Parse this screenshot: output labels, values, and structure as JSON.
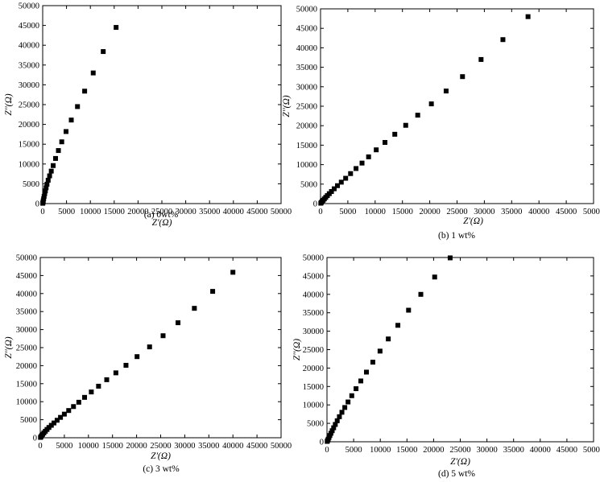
{
  "panels": [
    {
      "caption": "(a) 0wt%",
      "chart_data": {
        "type": "scatter",
        "xlabel": "Z'(Ω)",
        "ylabel": "Z''(Ω)",
        "xlim": [
          0,
          50000
        ],
        "ylim": [
          0,
          50000
        ],
        "x_ticks": [
          0,
          5000,
          10000,
          15000,
          20000,
          25000,
          30000,
          35000,
          40000,
          45000,
          50000
        ],
        "y_ticks": [
          0,
          5000,
          10000,
          15000,
          20000,
          25000,
          30000,
          35000,
          40000,
          45000,
          50000
        ],
        "marker": "filled-square",
        "grid": false,
        "points": [
          [
            20,
            80
          ],
          [
            60,
            300
          ],
          [
            120,
            700
          ],
          [
            200,
            1200
          ],
          [
            300,
            1800
          ],
          [
            420,
            2500
          ],
          [
            560,
            3200
          ],
          [
            720,
            4000
          ],
          [
            900,
            4900
          ],
          [
            1150,
            5900
          ],
          [
            1450,
            7000
          ],
          [
            1800,
            8200
          ],
          [
            2200,
            9600
          ],
          [
            2700,
            11400
          ],
          [
            3300,
            13400
          ],
          [
            4000,
            15600
          ],
          [
            4900,
            18200
          ],
          [
            6000,
            21100
          ],
          [
            7300,
            24500
          ],
          [
            8800,
            28400
          ],
          [
            10600,
            33000
          ],
          [
            12700,
            38400
          ],
          [
            15400,
            44500
          ]
        ]
      }
    },
    {
      "caption": "(b) 1 wt%",
      "chart_data": {
        "type": "scatter",
        "xlabel": "Z'(Ω)",
        "ylabel": "Z''(Ω)",
        "xlim": [
          0,
          50000
        ],
        "ylim": [
          0,
          50000
        ],
        "x_ticks": [
          0,
          5000,
          10000,
          15000,
          20000,
          25000,
          30000,
          35000,
          40000,
          45000,
          50000
        ],
        "y_ticks": [
          0,
          5000,
          10000,
          15000,
          20000,
          25000,
          30000,
          35000,
          40000,
          45000,
          50000
        ],
        "marker": "filled-square",
        "grid": false,
        "points": [
          [
            50,
            100
          ],
          [
            150,
            300
          ],
          [
            300,
            550
          ],
          [
            480,
            850
          ],
          [
            700,
            1200
          ],
          [
            950,
            1600
          ],
          [
            1250,
            2050
          ],
          [
            1600,
            2550
          ],
          [
            2000,
            3100
          ],
          [
            2500,
            3800
          ],
          [
            3100,
            4600
          ],
          [
            3800,
            5500
          ],
          [
            4600,
            6500
          ],
          [
            5500,
            7700
          ],
          [
            6500,
            9000
          ],
          [
            7600,
            10400
          ],
          [
            8800,
            12000
          ],
          [
            10200,
            13800
          ],
          [
            11800,
            15700
          ],
          [
            13600,
            17800
          ],
          [
            15600,
            20100
          ],
          [
            17800,
            22700
          ],
          [
            20300,
            25600
          ],
          [
            23000,
            28900
          ],
          [
            26000,
            32600
          ],
          [
            29400,
            37000
          ],
          [
            33400,
            42100
          ],
          [
            38000,
            48000
          ]
        ]
      }
    },
    {
      "caption": "(c) 3 wt%",
      "chart_data": {
        "type": "scatter",
        "xlabel": "Z'(Ω)",
        "ylabel": "Z''(Ω)",
        "xlim": [
          0,
          50000
        ],
        "ylim": [
          0,
          50000
        ],
        "x_ticks": [
          0,
          5000,
          10000,
          15000,
          20000,
          25000,
          30000,
          35000,
          40000,
          45000,
          50000
        ],
        "y_ticks": [
          0,
          5000,
          10000,
          15000,
          20000,
          25000,
          30000,
          35000,
          40000,
          45000,
          50000
        ],
        "marker": "filled-square",
        "grid": false,
        "points": [
          [
            50,
            100
          ],
          [
            150,
            300
          ],
          [
            300,
            600
          ],
          [
            500,
            950
          ],
          [
            750,
            1350
          ],
          [
            1050,
            1800
          ],
          [
            1400,
            2300
          ],
          [
            1800,
            2850
          ],
          [
            2300,
            3450
          ],
          [
            2850,
            4100
          ],
          [
            3500,
            4850
          ],
          [
            4200,
            5650
          ],
          [
            5000,
            6550
          ],
          [
            5900,
            7550
          ],
          [
            6900,
            8650
          ],
          [
            8000,
            9850
          ],
          [
            9200,
            11200
          ],
          [
            10600,
            12700
          ],
          [
            12100,
            14300
          ],
          [
            13800,
            16100
          ],
          [
            15700,
            18000
          ],
          [
            17800,
            20100
          ],
          [
            20100,
            22500
          ],
          [
            22700,
            25200
          ],
          [
            25500,
            28300
          ],
          [
            28600,
            31900
          ],
          [
            32000,
            35900
          ],
          [
            35800,
            40600
          ],
          [
            40000,
            45900
          ]
        ]
      }
    },
    {
      "caption": "(d) 5 wt%",
      "chart_data": {
        "type": "scatter",
        "xlabel": "Z'(Ω)",
        "ylabel": "Z''(Ω)",
        "xlim": [
          0,
          50000
        ],
        "ylim": [
          0,
          50000
        ],
        "x_ticks": [
          0,
          5000,
          10000,
          15000,
          20000,
          25000,
          30000,
          35000,
          40000,
          45000,
          50000
        ],
        "y_ticks": [
          0,
          5000,
          10000,
          15000,
          20000,
          25000,
          30000,
          35000,
          40000,
          45000,
          50000
        ],
        "marker": "filled-square",
        "grid": false,
        "points": [
          [
            40,
            100
          ],
          [
            120,
            350
          ],
          [
            230,
            700
          ],
          [
            370,
            1150
          ],
          [
            540,
            1700
          ],
          [
            740,
            2300
          ],
          [
            980,
            3000
          ],
          [
            1250,
            3800
          ],
          [
            1560,
            4700
          ],
          [
            1920,
            5700
          ],
          [
            2330,
            6800
          ],
          [
            2800,
            8000
          ],
          [
            3340,
            9300
          ],
          [
            3950,
            10800
          ],
          [
            4650,
            12500
          ],
          [
            5450,
            14400
          ],
          [
            6350,
            16500
          ],
          [
            7400,
            18900
          ],
          [
            8600,
            21600
          ],
          [
            9950,
            24600
          ],
          [
            11500,
            27900
          ],
          [
            13300,
            31600
          ],
          [
            15300,
            35700
          ],
          [
            17600,
            40000
          ],
          [
            20200,
            44700
          ],
          [
            23100,
            49900
          ]
        ]
      }
    }
  ]
}
